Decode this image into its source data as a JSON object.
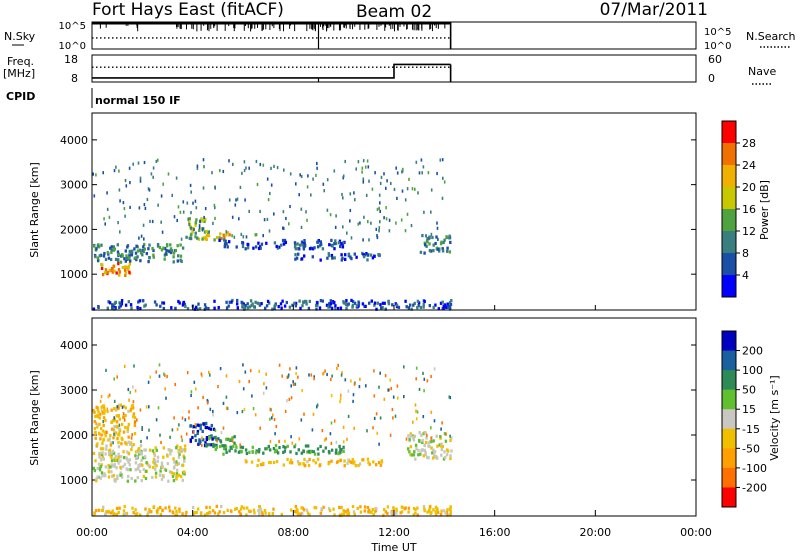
{
  "header": {
    "station": "Fort Hays East (fitACF)",
    "beam": "Beam 02",
    "date": "07/Mar/2011"
  },
  "colors": {
    "background": "#ffffff",
    "axis": "#000000",
    "power_scale": [
      "#0000ff",
      "#1a4fa8",
      "#3a7f7f",
      "#4fa33f",
      "#c8c800",
      "#f0b000",
      "#f07000",
      "#ff0000"
    ],
    "velocity_scale": [
      "#ff0000",
      "#ff7000",
      "#ffa000",
      "#f0c000",
      "#c8c8c0",
      "#60c030",
      "#2e8b57",
      "#1a5fa0",
      "#0000c0"
    ]
  },
  "chart_data": [
    {
      "type": "line",
      "panel": "noise",
      "left_label": "N.Sky",
      "right_label": "N.Search",
      "y_ticks_left": [
        "10^5",
        "10^0"
      ],
      "y_ticks_right": [
        "10^5",
        "10^0"
      ],
      "x_range": [
        "00:00",
        "24:00"
      ],
      "data_end": "14:15",
      "gaps": [
        "09:00"
      ],
      "series": [
        {
          "name": "N.Sky",
          "style": "solid",
          "x": [
            "00:00",
            "14:15"
          ],
          "values": [
            "10^5",
            "10^5"
          ]
        },
        {
          "name": "N.Search",
          "style": "dotted",
          "x": [
            "00:00",
            "14:15"
          ],
          "values": [
            "10^2",
            "10^2"
          ]
        }
      ]
    },
    {
      "type": "line",
      "panel": "frequency",
      "left_label_top": "Freq.",
      "left_label_bottom": "[MHz]",
      "right_label": "Nave",
      "y_ticks_left": [
        18,
        8
      ],
      "y_ticks_right": [
        60,
        0
      ],
      "series": [
        {
          "name": "Freq.",
          "style": "solid",
          "x": [
            "00:00",
            "09:00",
            "09:00",
            "12:00",
            "12:00",
            "14:15"
          ],
          "values": [
            9.5,
            9.5,
            9.5,
            9.5,
            14.5,
            14.5
          ]
        },
        {
          "name": "Nave",
          "style": "dotted",
          "x": [
            "00:00",
            "14:15"
          ],
          "values": [
            33,
            33
          ]
        }
      ]
    },
    {
      "type": "table",
      "panel": "cpid",
      "label": "CPID",
      "value": "normal 150 IF"
    },
    {
      "type": "heatmap",
      "panel": "power",
      "ylabel": "Slant Range [km]",
      "y_ticks": [
        1000,
        2000,
        3000,
        4000
      ],
      "ylim": [
        200,
        4600
      ],
      "x_ticks": [
        "00:00",
        "04:00",
        "08:00",
        "12:00",
        "16:00",
        "20:00",
        "00:00"
      ],
      "colorbar_label": "Power [dB]",
      "colorbar_ticks": [
        4,
        8,
        12,
        16,
        20,
        24,
        28
      ],
      "colorbar_range": [
        0,
        32
      ],
      "features": [
        {
          "start": "00:10",
          "end": "01:30",
          "range_from": 1000,
          "range_to": 1300,
          "value": 24
        },
        {
          "start": "00:00",
          "end": "03:40",
          "range_from": 1300,
          "range_to": 1700,
          "value": 10
        },
        {
          "start": "03:40",
          "end": "04:30",
          "range_from": 1800,
          "range_to": 2300,
          "value": 14
        },
        {
          "start": "04:30",
          "end": "05:30",
          "range_from": 1800,
          "range_to": 2000,
          "value": 20
        },
        {
          "start": "05:00",
          "end": "10:00",
          "range_from": 1600,
          "range_to": 1800,
          "value": 6
        },
        {
          "start": "08:00",
          "end": "11:30",
          "range_from": 1350,
          "range_to": 1500,
          "value": 6
        },
        {
          "start": "13:00",
          "end": "14:15",
          "range_from": 1500,
          "range_to": 1900,
          "value": 10
        },
        {
          "start": "00:00",
          "end": "14:15",
          "range_from": 250,
          "range_to": 450,
          "value": 6
        }
      ]
    },
    {
      "type": "heatmap",
      "panel": "velocity",
      "ylabel": "Slant Range [km]",
      "y_ticks": [
        1000,
        2000,
        3000,
        4000
      ],
      "ylim": [
        200,
        4600
      ],
      "x_ticks": [
        "00:00",
        "04:00",
        "08:00",
        "12:00",
        "16:00",
        "20:00",
        "00:00"
      ],
      "xlabel": "Time UT",
      "colorbar_label": "Velocity [m s⁻¹]",
      "colorbar_ticks": [
        200,
        100,
        50,
        15,
        -15,
        -50,
        -100,
        -200
      ],
      "features": [
        {
          "start": "00:00",
          "end": "03:40",
          "range_from": 1000,
          "range_to": 1800,
          "value": 0
        },
        {
          "start": "00:00",
          "end": "01:40",
          "range_from": 1800,
          "range_to": 2700,
          "value": -40
        },
        {
          "start": "03:50",
          "end": "05:00",
          "range_from": 1800,
          "range_to": 2300,
          "value": 200
        },
        {
          "start": "04:30",
          "end": "05:40",
          "range_from": 1700,
          "range_to": 2000,
          "value": 60
        },
        {
          "start": "05:00",
          "end": "10:00",
          "range_from": 1600,
          "range_to": 1800,
          "value": 60
        },
        {
          "start": "06:00",
          "end": "11:30",
          "range_from": 1350,
          "range_to": 1500,
          "value": -40
        },
        {
          "start": "12:30",
          "end": "14:15",
          "range_from": 1500,
          "range_to": 2100,
          "value": 0
        },
        {
          "start": "00:00",
          "end": "14:15",
          "range_from": 250,
          "range_to": 450,
          "value": -40
        }
      ]
    }
  ]
}
